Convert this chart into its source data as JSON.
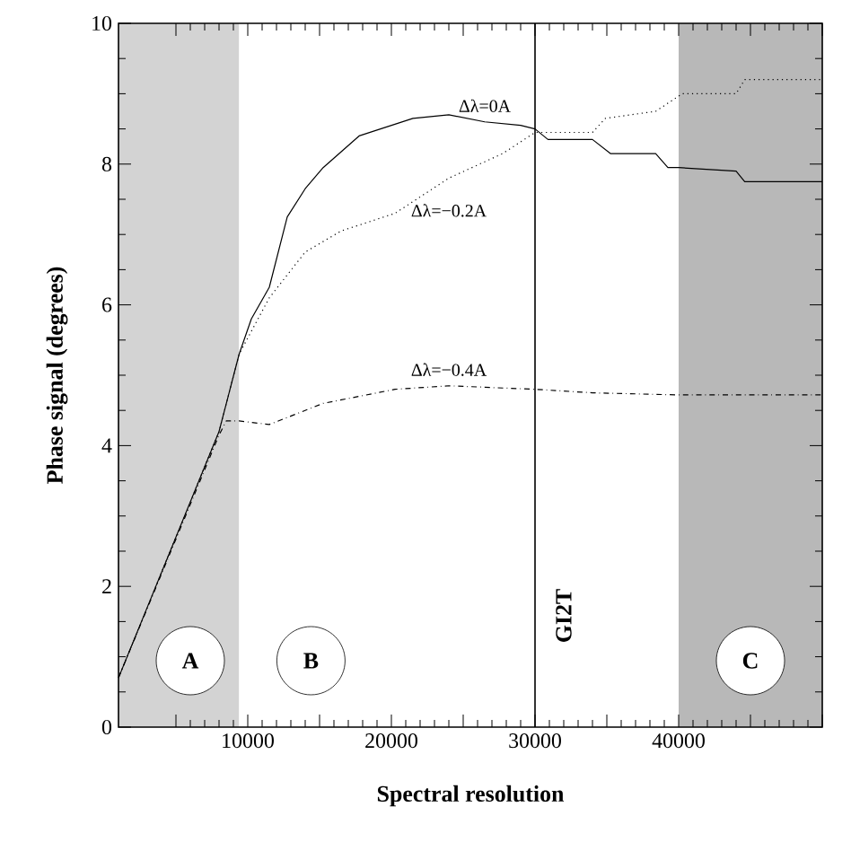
{
  "chart_data": {
    "type": "line",
    "xlabel": "Spectral resolution",
    "ylabel": "Phase signal (degrees)",
    "xlim": [
      1000,
      50000
    ],
    "ylim": [
      0,
      10
    ],
    "xticks": [
      {
        "value": 5000,
        "label": null
      },
      10000,
      {
        "value": 15000,
        "label": null
      },
      20000,
      {
        "value": 25000,
        "label": null
      },
      30000,
      {
        "value": 35000,
        "label": null
      },
      40000,
      {
        "value": 45000,
        "label": null
      },
      {
        "value": 50000,
        "label": null
      }
    ],
    "yticks": [
      0,
      2,
      4,
      6,
      8,
      10
    ],
    "grid": false,
    "series": [
      {
        "name": "Δλ=0A",
        "color": "#000000",
        "line_style": "solid",
        "x": [
          1000,
          8000,
          9400,
          10250,
          11500,
          12750,
          14000,
          15250,
          17750,
          21500,
          24000,
          26500,
          29000,
          30000,
          30900,
          34000,
          35250,
          38400,
          39250,
          40000,
          44000,
          44600,
          50000
        ],
        "values": [
          0.7,
          4.2,
          5.3,
          5.8,
          6.25,
          7.25,
          7.65,
          7.95,
          8.4,
          8.65,
          8.7,
          8.6,
          8.55,
          8.5,
          8.35,
          8.35,
          8.15,
          8.15,
          7.95,
          7.95,
          7.9,
          7.75,
          7.75
        ]
      },
      {
        "name": "Δλ=−0.2A",
        "color": "#000000",
        "line_style": "dotted",
        "x": [
          1000,
          8000,
          9400,
          11500,
          14000,
          16500,
          20250,
          24000,
          27750,
          30000,
          30900,
          34000,
          34900,
          38400,
          40250,
          44000,
          44600,
          50000
        ],
        "values": [
          0.7,
          4.2,
          5.3,
          6.1,
          6.75,
          7.05,
          7.3,
          7.8,
          8.15,
          8.45,
          8.45,
          8.45,
          8.65,
          8.75,
          9.0,
          9.0,
          9.2,
          9.2
        ]
      },
      {
        "name": "Δλ=−0.4A",
        "color": "#000000",
        "line_style": "dashdot",
        "x": [
          1000,
          8000,
          8500,
          9400,
          11500,
          15250,
          20250,
          24000,
          30000,
          34000,
          40000,
          50000
        ],
        "values": [
          0.7,
          4.15,
          4.35,
          4.35,
          4.3,
          4.6,
          4.8,
          4.85,
          4.8,
          4.75,
          4.72,
          4.72
        ]
      }
    ],
    "bands": [
      {
        "axis": "x",
        "from": 1000,
        "to": 9400,
        "label": "A",
        "color": "#d3d3d3"
      },
      {
        "axis": "x",
        "from": 9400,
        "to": 40000,
        "label": "B",
        "color": "#ffffff"
      },
      {
        "axis": "x",
        "from": 40000,
        "to": 50000,
        "label": "C",
        "color": "#b8b8b8"
      }
    ],
    "ref_lines": [
      {
        "axis": "x",
        "value": 30000,
        "label": "GI2T",
        "color": "#000000"
      }
    ]
  }
}
